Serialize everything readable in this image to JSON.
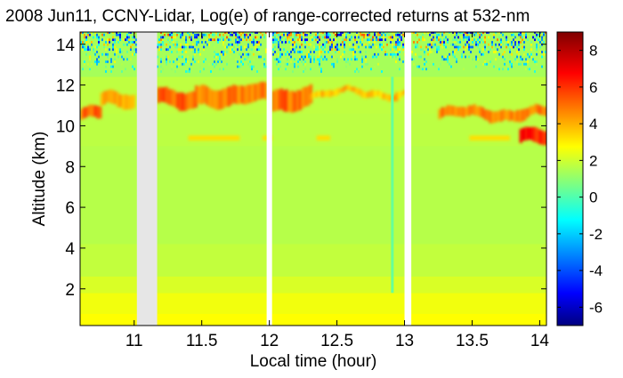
{
  "chart_data": {
    "type": "heatmap",
    "title": "2008 Jun11, CCNY-Lidar, Log(e) of range-corrected returns at 532-nm",
    "xlabel": "Local time (hour)",
    "ylabel": "Altitude (km)",
    "xlim": [
      10.6,
      14.05
    ],
    "ylim": [
      0.2,
      14.6
    ],
    "x_ticks": [
      11,
      11.5,
      12,
      12.5,
      13,
      13.5,
      14
    ],
    "x_tick_labels": [
      "11",
      "11.5",
      "12",
      "12.5",
      "13",
      "13.5",
      "14"
    ],
    "y_ticks": [
      2,
      4,
      6,
      8,
      10,
      12,
      14
    ],
    "y_tick_labels": [
      "2",
      "4",
      "6",
      "8",
      "10",
      "12",
      "14"
    ],
    "colorbar": {
      "colormap": "jet",
      "range": [
        -7,
        9
      ],
      "ticks": [
        -6,
        -4,
        -2,
        0,
        2,
        4,
        6,
        8
      ],
      "tick_labels": [
        "-6",
        "-4",
        "-2",
        "0",
        "2",
        "4",
        "6",
        "8"
      ]
    },
    "data_gaps_hours": [
      [
        11.02,
        11.17
      ],
      [
        11.98,
        12.02
      ],
      [
        13.0,
        13.05
      ]
    ],
    "features": {
      "boundary_layer": {
        "altitude_km": [
          0.2,
          1.8
        ],
        "value": 3.0
      },
      "cirrus_main": [
        {
          "x_start": 10.6,
          "x_end": 10.75,
          "alt_bottom_km": 10.2,
          "alt_top_km": 10.9,
          "value": 5.5
        },
        {
          "x_start": 10.75,
          "x_end": 11.0,
          "alt_bottom_km": 10.8,
          "alt_top_km": 11.6,
          "value": 4.5
        },
        {
          "x_start": 11.17,
          "x_end": 11.45,
          "alt_bottom_km": 10.9,
          "alt_top_km": 11.8,
          "value": 5.5
        },
        {
          "x_start": 11.45,
          "x_end": 11.98,
          "alt_bottom_km": 11.0,
          "alt_top_km": 12.0,
          "value": 5.0
        },
        {
          "x_start": 12.02,
          "x_end": 12.3,
          "alt_bottom_km": 10.8,
          "alt_top_km": 11.9,
          "value": 5.2
        },
        {
          "x_start": 12.3,
          "x_end": 13.0,
          "alt_bottom_km": 11.4,
          "alt_top_km": 11.8,
          "value": 4.0
        },
        {
          "x_start": 13.25,
          "x_end": 14.05,
          "alt_bottom_km": 10.3,
          "alt_top_km": 10.9,
          "value": 5.0
        },
        {
          "x_start": 13.85,
          "x_end": 14.05,
          "alt_bottom_km": 9.0,
          "alt_top_km": 9.8,
          "value": 6.5
        }
      ],
      "thin_layer": {
        "altitude_km": 9.4,
        "value": 3.5
      },
      "noise_region": {
        "alt_bottom_km": 12.6,
        "value_mean": 0.0
      }
    }
  }
}
